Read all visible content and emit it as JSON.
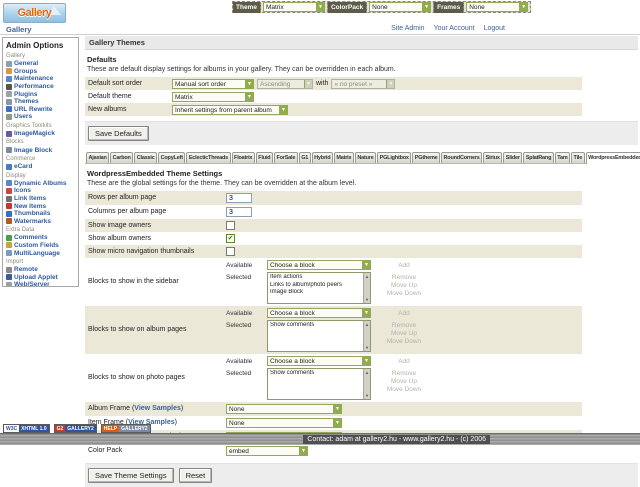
{
  "colors": {
    "accent_green": "#8fae4a",
    "row_beige": "#ebe8d8",
    "link_blue": "#3c5f9a"
  },
  "header": {
    "logo_text": "Gallery",
    "breadcrumb": "Gallery",
    "links": [
      "Site Admin",
      "Your Account",
      "Logout"
    ],
    "toolbar": [
      {
        "label": "Theme",
        "value": "Matrix"
      },
      {
        "label": "ColorPack",
        "value": "None"
      },
      {
        "label": "Frames",
        "value": "None"
      }
    ]
  },
  "sidebar": {
    "title": "Admin Options",
    "sections": [
      {
        "label": "Gallery",
        "items": [
          {
            "label": "General",
            "icon": "general-icon",
            "color": "#8aa0b8"
          },
          {
            "label": "Groups",
            "icon": "groups-icon",
            "color": "#d89a3c"
          },
          {
            "label": "Maintenance",
            "icon": "maintenance-icon",
            "color": "#5b87c5"
          },
          {
            "label": "Performance",
            "icon": "performance-icon",
            "color": "#555548"
          },
          {
            "label": "Plugins",
            "icon": "plugins-icon",
            "color": "#9aa5a5"
          },
          {
            "label": "Themes",
            "icon": "themes-icon",
            "color": "#8a95a5"
          },
          {
            "label": "URL Rewrite",
            "icon": "url-rewrite-icon",
            "color": "#3a6fc4"
          },
          {
            "label": "Users",
            "icon": "users-icon",
            "color": "#8a9a8a"
          }
        ]
      },
      {
        "label": "Graphics Toolkits",
        "items": [
          {
            "label": "ImageMagick",
            "icon": "imagemagick-icon",
            "color": "#6a5a9d"
          }
        ]
      },
      {
        "label": "Blocks",
        "items": [
          {
            "label": "Image Block",
            "icon": "image-block-icon",
            "color": "#7a8aa0"
          }
        ]
      },
      {
        "label": "Commerce",
        "items": [
          {
            "label": "eCard",
            "icon": "ecard-icon",
            "color": "#4a7ac0"
          }
        ]
      },
      {
        "label": "Display",
        "items": [
          {
            "label": "Dynamic Albums",
            "icon": "dynamic-albums-icon",
            "color": "#5a8ac5"
          },
          {
            "label": "Icons",
            "icon": "icons-icon",
            "color": "#c04a4a"
          },
          {
            "label": "Link Items",
            "icon": "link-items-icon",
            "color": "#707070"
          },
          {
            "label": "New Items",
            "icon": "new-items-icon",
            "color": "#c0392b"
          },
          {
            "label": "Thumbnails",
            "icon": "thumbnails-icon",
            "color": "#3a6fc4"
          },
          {
            "label": "Watermarks",
            "icon": "watermarks-icon",
            "color": "#b05a2a"
          }
        ]
      },
      {
        "label": "Extra Data",
        "items": [
          {
            "label": "Comments",
            "icon": "comments-icon",
            "color": "#4aa04a"
          },
          {
            "label": "Custom Fields",
            "icon": "custom-fields-icon",
            "color": "#c8a23c"
          },
          {
            "label": "MultiLanguage",
            "icon": "multilanguage-icon",
            "color": "#7a9ac0"
          }
        ]
      },
      {
        "label": "Import",
        "items": [
          {
            "label": "Remote",
            "icon": "remote-icon",
            "color": "#8a8a8a"
          },
          {
            "label": "Upload Applet",
            "icon": "upload-applet-icon",
            "color": "#3a5a9a"
          },
          {
            "label": "Web/Server",
            "icon": "web-server-icon",
            "color": "#9aa0a8"
          }
        ]
      }
    ]
  },
  "page_title": "Gallery Themes",
  "defaults": {
    "heading": "Defaults",
    "description": "These are default display settings for albums in your gallery. They can be overridden in each album.",
    "sort_row": {
      "label": "Default sort order",
      "order": "Manual sort order",
      "direction": "Ascending",
      "conj": "with",
      "preset": "« no preset »"
    },
    "theme_row": {
      "label": "Default theme",
      "value": "Matrix"
    },
    "albums_row": {
      "label": "New albums",
      "value": "Inherit settings from parent album"
    },
    "save_label": "Save Defaults"
  },
  "tabs": {
    "items": [
      "Ajaxian",
      "Carbon",
      "Classic",
      "CopyLeft",
      "EclecticThreads",
      "Floatrix",
      "Fluid",
      "ForSale",
      "G1",
      "Hybrid",
      "Matrix",
      "Nature",
      "PGLightbox",
      "PGtheme",
      "RoundCorners",
      "Siriux",
      "Slider",
      "SplatRang",
      "Tam",
      "Tile",
      "WordpressEmbedded"
    ],
    "active": "WordpressEmbedded"
  },
  "theme_settings": {
    "heading": "WordpressEmbedded Theme Settings",
    "description": "These are the global settings for the theme. They can be overridden at the album level.",
    "blocks_ui": {
      "available": "Available",
      "selected": "Selected",
      "choose": "Choose a block",
      "add": "Add",
      "actions": [
        "Remove",
        "Move Up",
        "Move Down"
      ]
    },
    "rows": [
      {
        "type": "text",
        "label": "Rows per album page",
        "value": "3"
      },
      {
        "type": "text",
        "label": "Columns per album page",
        "value": "3"
      },
      {
        "type": "checkbox",
        "label": "Show image owners",
        "checked": false
      },
      {
        "type": "checkbox",
        "label": "Show album owners",
        "checked": true
      },
      {
        "type": "checkbox",
        "label": "Show micro navigation thumbnails",
        "checked": false
      },
      {
        "type": "blocks",
        "label": "Blocks to show in the sidebar",
        "selected": [
          "Item actions",
          "Links to album/photo peers",
          "Image Block"
        ]
      },
      {
        "type": "blocks",
        "label": "Blocks to show on album pages",
        "selected": [
          "Show comments"
        ]
      },
      {
        "type": "blocks",
        "label": "Blocks to show on photo pages",
        "selected": [
          "Show comments"
        ]
      },
      {
        "type": "select",
        "label": "Album Frame",
        "link": "View Samples",
        "value": "None"
      },
      {
        "type": "select",
        "label": "Item Frame",
        "link": "View Samples",
        "value": "None"
      },
      {
        "type": "select",
        "label": "Photo Frame",
        "link": "View Samples",
        "value": "None"
      },
      {
        "type": "select",
        "label": "Color Pack",
        "value": "embed"
      }
    ],
    "save_label": "Save Theme Settings",
    "reset_label": "Reset"
  },
  "badges": [
    {
      "name": "w3c-xhtml-badge",
      "left": "W3C",
      "right": "XHTML 1.0",
      "left_bg": "#ffffff",
      "left_fg": "#33539c",
      "right_bg": "#33539c",
      "right_fg": "#ffffff"
    },
    {
      "name": "gallery2-badge",
      "left": "G2",
      "right": "GALLERY2",
      "left_bg": "#c33b2e",
      "left_fg": "#ffffff",
      "right_bg": "#33539c",
      "right_fg": "#ffffff"
    },
    {
      "name": "help-gallery2-badge",
      "left": "HELP",
      "right": "GALLERY2",
      "left_bg": "#e05a12",
      "left_fg": "#ffffff",
      "right_bg": "#7a8aa0",
      "right_fg": "#ffffff"
    }
  ],
  "footer": {
    "text": "Contact: adam at gallery2.hu - www.gallery2.hu - (c) 2006"
  }
}
